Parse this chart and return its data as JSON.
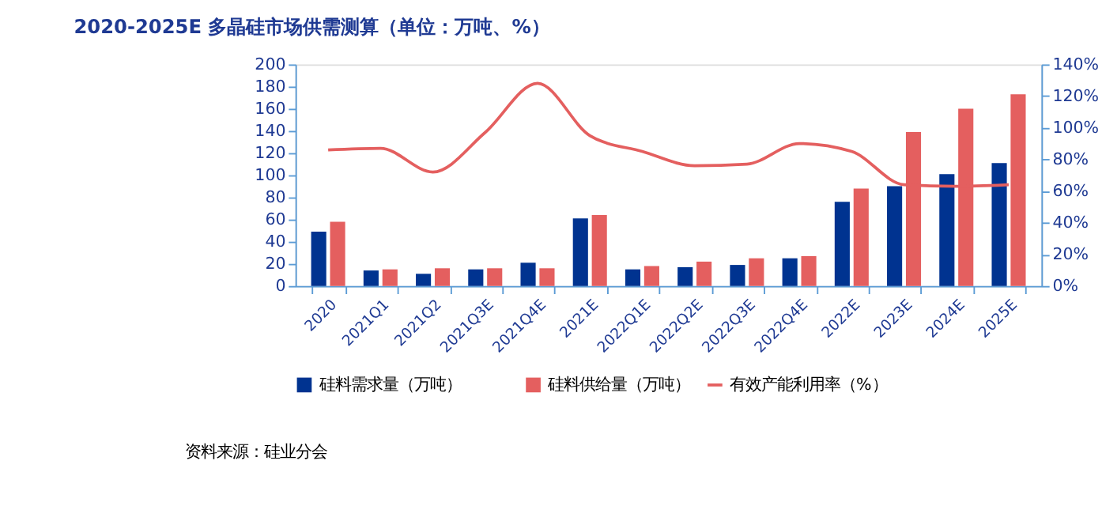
{
  "chart_data": {
    "type": "bar",
    "title": "2020-2025E 多晶硅市场供需测算（单位：万吨、%）",
    "categories": [
      "2020",
      "2021Q1",
      "2021Q2",
      "2021Q3E",
      "2021Q4E",
      "2021E",
      "2022Q1E",
      "2022Q2E",
      "2022Q3E",
      "2022Q4E",
      "2022E",
      "2023E",
      "2024E",
      "2025E"
    ],
    "series": [
      {
        "name": "硅料需求量（万吨）",
        "color": "#003390",
        "values": [
          49,
          14,
          11,
          15,
          21,
          61,
          15,
          17,
          19,
          25,
          76,
          90,
          101,
          111
        ]
      },
      {
        "name": "硅料供给量（万吨）",
        "color": "#e45f5f",
        "values": [
          58,
          15,
          16,
          16,
          16,
          64,
          18,
          22,
          25,
          27,
          88,
          139,
          160,
          173
        ]
      },
      {
        "name": "有效产能利用率（%）",
        "color": "#e45f5f",
        "type": "line",
        "axis": "y2",
        "values": [
          86,
          87,
          72,
          97,
          128,
          95,
          85,
          76,
          77,
          90,
          85,
          64,
          63,
          64
        ]
      }
    ],
    "ylim": [
      0,
      200
    ],
    "yticks": [
      0,
      20,
      40,
      60,
      80,
      100,
      120,
      140,
      160,
      180,
      200
    ],
    "y2lim": [
      0,
      140
    ],
    "y2ticks": [
      {
        "value": 0,
        "label": "0%"
      },
      {
        "value": 20,
        "label": "20%"
      },
      {
        "value": 40,
        "label": "40%"
      },
      {
        "value": 60,
        "label": "60%"
      },
      {
        "value": 80,
        "label": "80%"
      },
      {
        "value": 100,
        "label": "100%"
      },
      {
        "value": 120,
        "label": "120%"
      },
      {
        "value": 140,
        "label": "140%"
      }
    ],
    "grid": false,
    "legend": "bottom",
    "annotations": [
      "资料来源：硅业分会"
    ]
  }
}
